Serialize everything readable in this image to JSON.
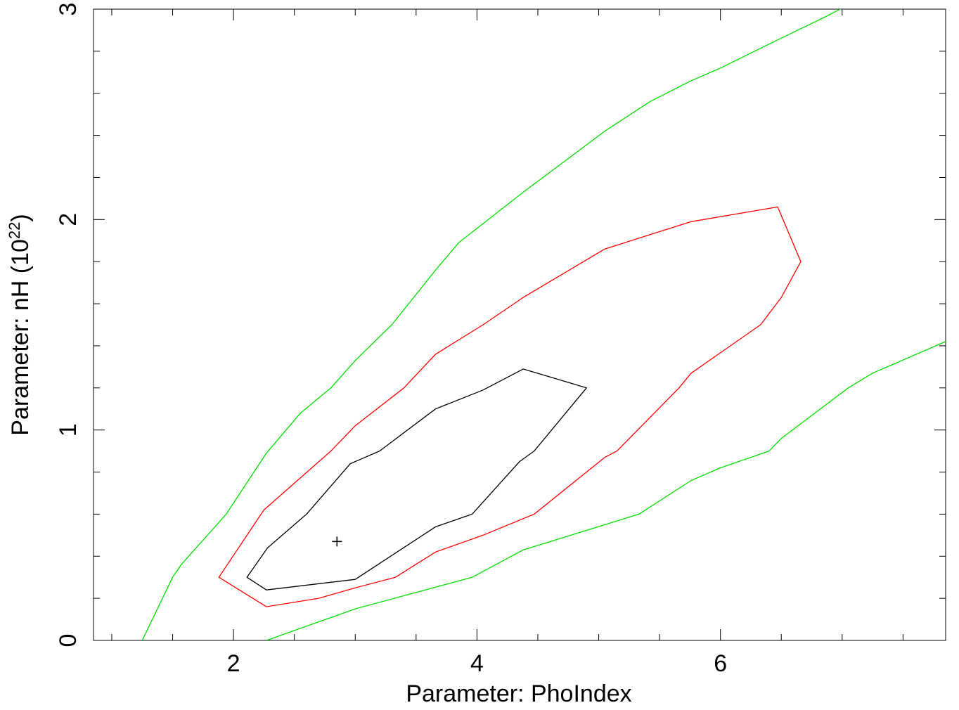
{
  "chart_data": {
    "type": "line",
    "title": "",
    "xlabel": "Parameter: PhoIndex",
    "ylabel_main": "Parameter: nH (10",
    "ylabel_sup": "22",
    "ylabel_close": ")",
    "xlim": [
      0.85,
      7.85
    ],
    "ylim": [
      0,
      3
    ],
    "x_ticks": [
      2,
      4,
      6
    ],
    "x_tick_labels": [
      "2",
      "4",
      "6"
    ],
    "y_ticks": [
      0,
      1,
      2,
      3
    ],
    "y_tick_labels": [
      "0",
      "1",
      "2",
      "3"
    ],
    "x_minor_step": 0.5,
    "y_minor_step": 0.2,
    "grid": false,
    "best_fit": {
      "x": 2.85,
      "y": 0.47,
      "marker": "+"
    },
    "series": [
      {
        "color": "#000000",
        "closed": true,
        "points": [
          [
            2.11,
            0.3
          ],
          [
            2.27,
            0.24
          ],
          [
            3.0,
            0.29
          ],
          [
            3.66,
            0.54
          ],
          [
            3.96,
            0.6
          ],
          [
            4.35,
            0.85
          ],
          [
            4.47,
            0.9
          ],
          [
            4.9,
            1.2
          ],
          [
            4.38,
            1.29
          ],
          [
            4.05,
            1.19
          ],
          [
            3.66,
            1.1
          ],
          [
            3.2,
            0.9
          ],
          [
            2.96,
            0.84
          ],
          [
            2.6,
            0.6
          ],
          [
            2.28,
            0.44
          ]
        ]
      },
      {
        "color": "#ff0000",
        "closed": true,
        "points": [
          [
            1.88,
            0.3
          ],
          [
            2.27,
            0.16
          ],
          [
            2.7,
            0.2
          ],
          [
            3.0,
            0.25
          ],
          [
            3.33,
            0.3
          ],
          [
            3.66,
            0.42
          ],
          [
            4.05,
            0.5
          ],
          [
            4.47,
            0.6
          ],
          [
            5.05,
            0.87
          ],
          [
            5.15,
            0.9
          ],
          [
            5.66,
            1.2
          ],
          [
            5.76,
            1.27
          ],
          [
            6.33,
            1.5
          ],
          [
            6.5,
            1.63
          ],
          [
            6.66,
            1.8
          ],
          [
            6.47,
            2.06
          ],
          [
            5.76,
            1.99
          ],
          [
            5.05,
            1.86
          ],
          [
            4.38,
            1.63
          ],
          [
            4.05,
            1.5
          ],
          [
            3.66,
            1.36
          ],
          [
            3.4,
            1.2
          ],
          [
            3.0,
            1.02
          ],
          [
            2.8,
            0.9
          ],
          [
            2.25,
            0.62
          ]
        ]
      },
      {
        "color": "#00e000",
        "closed": false,
        "points": [
          [
            1.25,
            0.0
          ],
          [
            1.5,
            0.3
          ],
          [
            1.57,
            0.36
          ],
          [
            1.94,
            0.6
          ],
          [
            2.27,
            0.89
          ],
          [
            2.55,
            1.08
          ],
          [
            2.8,
            1.2
          ],
          [
            3.0,
            1.33
          ],
          [
            3.3,
            1.5
          ],
          [
            3.48,
            1.63
          ],
          [
            3.66,
            1.76
          ],
          [
            3.85,
            1.89
          ],
          [
            4.38,
            2.13
          ],
          [
            4.75,
            2.29
          ],
          [
            5.05,
            2.42
          ],
          [
            5.42,
            2.56
          ],
          [
            5.76,
            2.66
          ],
          [
            6.0,
            2.72
          ],
          [
            6.42,
            2.84
          ],
          [
            6.85,
            2.96
          ],
          [
            7.25,
            3.08
          ]
        ]
      },
      {
        "color": "#00e000",
        "closed": false,
        "points": [
          [
            2.27,
            0.0
          ],
          [
            3.0,
            0.15
          ],
          [
            3.96,
            0.3
          ],
          [
            4.38,
            0.43
          ],
          [
            5.05,
            0.55
          ],
          [
            5.33,
            0.6
          ],
          [
            5.76,
            0.76
          ],
          [
            6.0,
            0.82
          ],
          [
            6.4,
            0.9
          ],
          [
            6.5,
            0.96
          ],
          [
            7.05,
            1.2
          ],
          [
            7.25,
            1.27
          ],
          [
            7.85,
            1.42
          ]
        ]
      }
    ]
  }
}
